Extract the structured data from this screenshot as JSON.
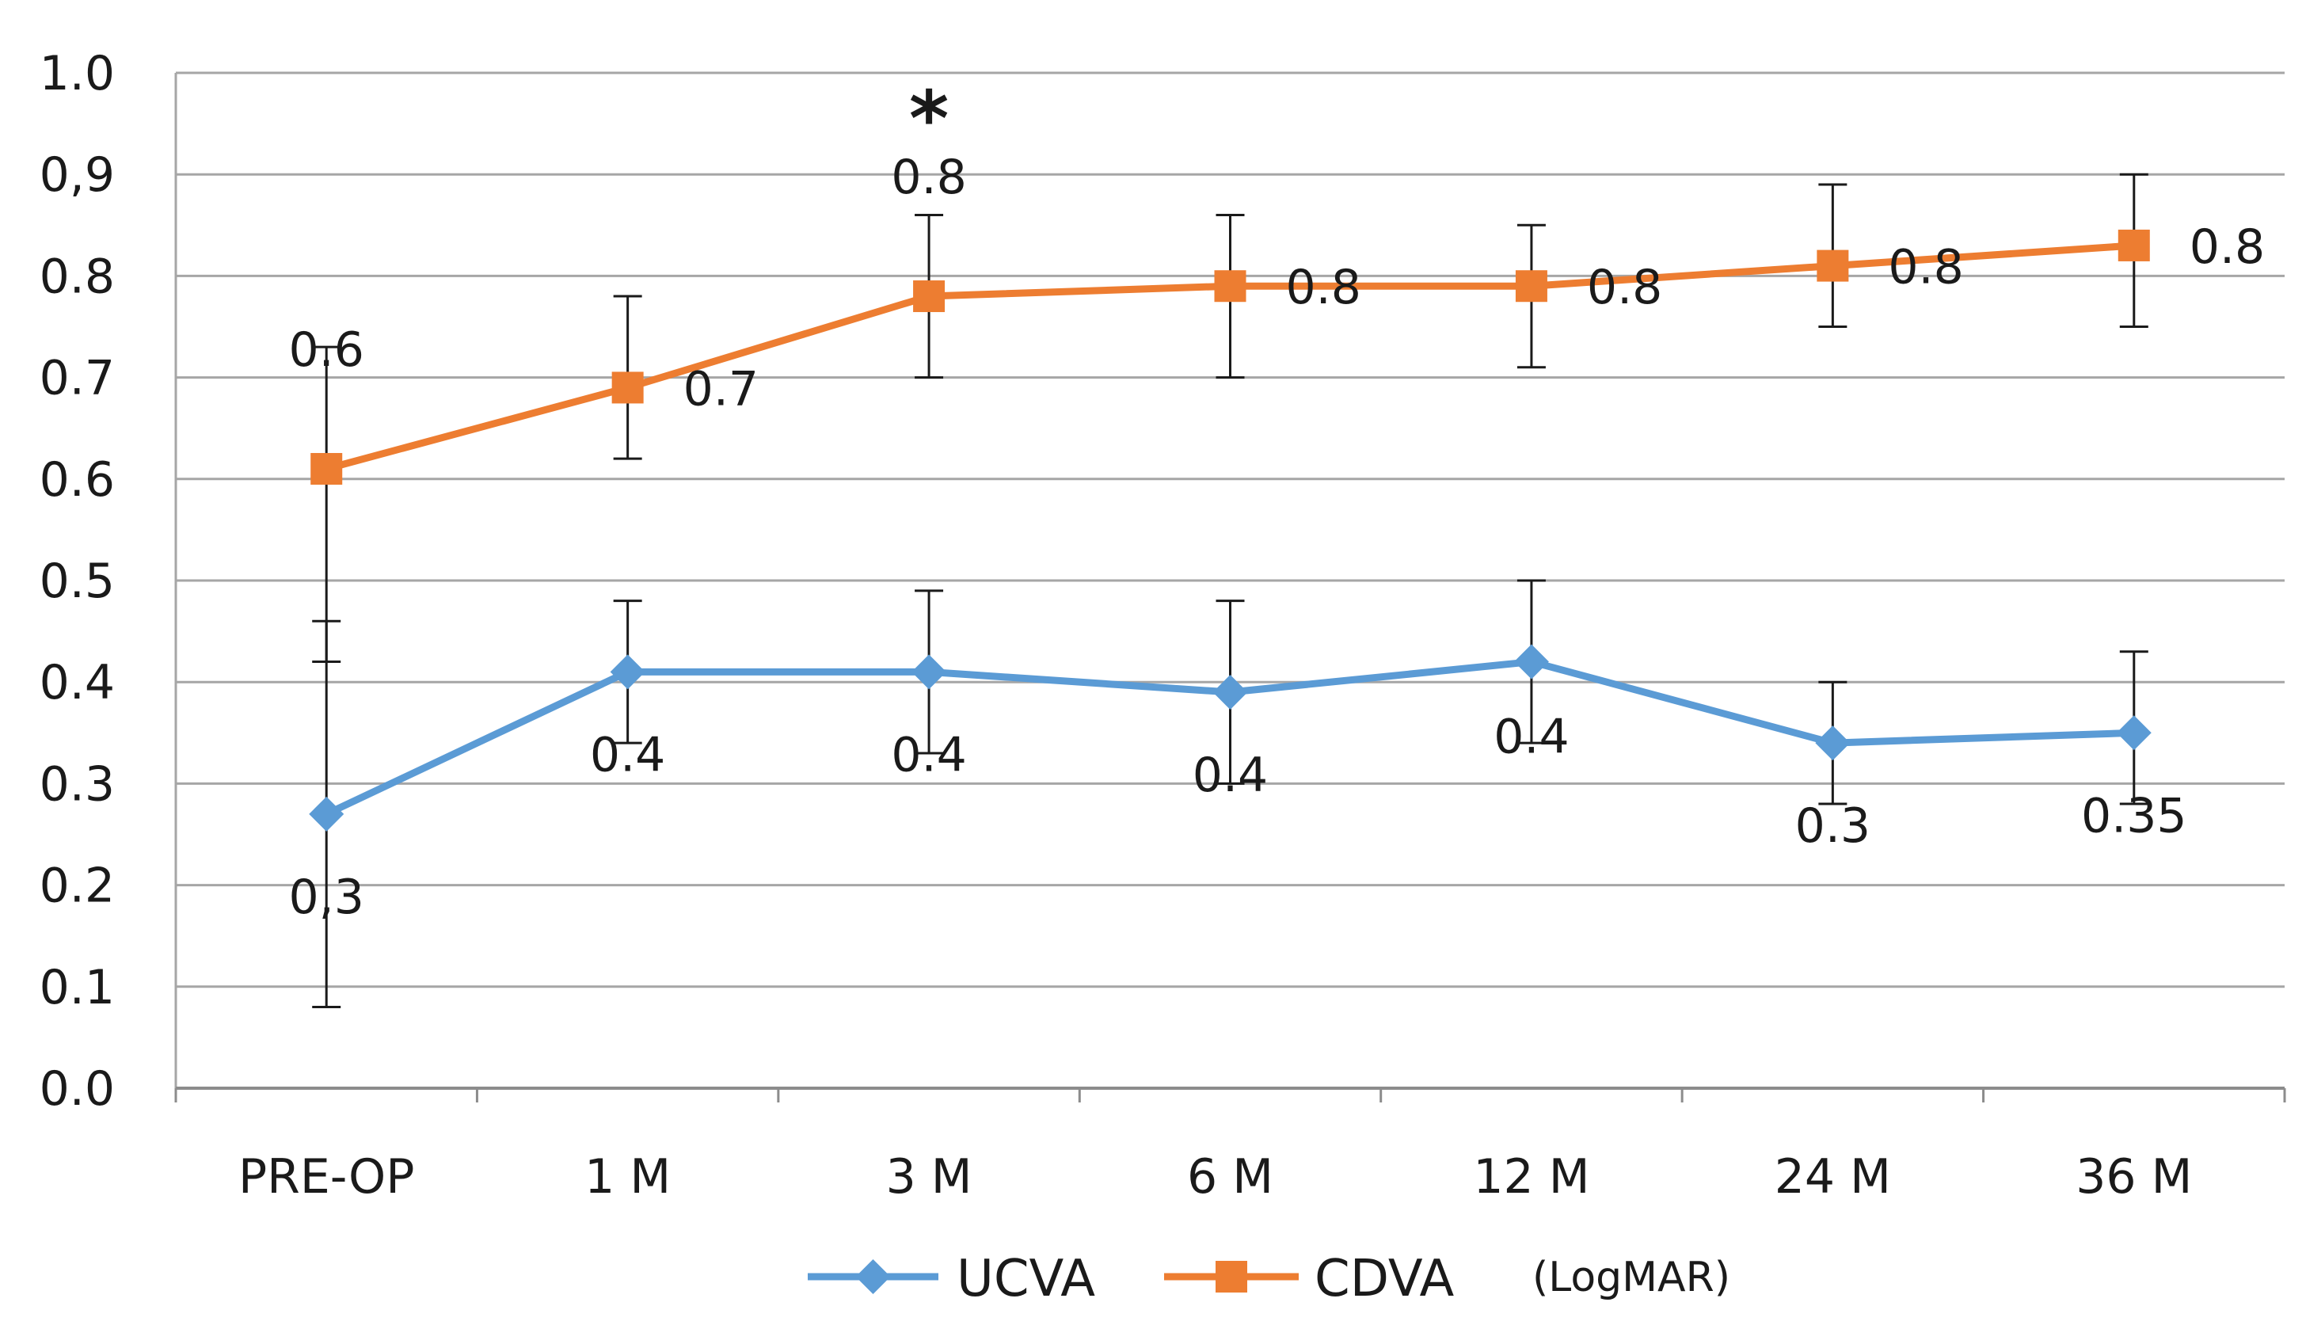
{
  "chart_data": {
    "type": "line",
    "title": "",
    "xlabel": "",
    "ylabel": "",
    "ylim": [
      0,
      1.0
    ],
    "y_ticks": [
      "0.0",
      "0.1",
      "0.2",
      "0.3",
      "0.4",
      "0.5",
      "0.6",
      "0.7",
      "0.8",
      "0,9",
      "1.0"
    ],
    "categories": [
      "PRE-OP",
      "1 M",
      "3 M",
      "6 M",
      "12 M",
      "24 M",
      "36 M"
    ],
    "grid": true,
    "legend_position": "bottom",
    "series": [
      {
        "name": "UCVA",
        "color": "#5B9BD5",
        "marker": "diamond",
        "values": [
          0.27,
          0.41,
          0.41,
          0.39,
          0.42,
          0.34,
          0.35
        ],
        "error_low": [
          0.08,
          0.34,
          0.33,
          0.3,
          0.34,
          0.28,
          0.28
        ],
        "error_high": [
          0.46,
          0.48,
          0.49,
          0.48,
          0.5,
          0.4,
          0.43
        ],
        "labels": [
          "0,3",
          "0.4",
          "0.4",
          "0.4",
          "0.4",
          "0.3",
          "0.35"
        ],
        "label_placement": [
          "below",
          "below",
          "below",
          "below",
          "above",
          "below",
          "below"
        ]
      },
      {
        "name": "CDVA",
        "color": "#ED7D31",
        "marker": "square",
        "values": [
          0.61,
          0.69,
          0.78,
          0.79,
          0.79,
          0.81,
          0.83
        ],
        "error_low": [
          0.42,
          0.62,
          0.7,
          0.7,
          0.71,
          0.75,
          0.75
        ],
        "error_high": [
          0.73,
          0.78,
          0.86,
          0.86,
          0.85,
          0.89,
          0.9
        ],
        "labels": [
          "0.6",
          "0.7",
          "0.8",
          "0.8",
          "0.8",
          "0.8",
          "0.8"
        ],
        "label_placement": [
          "above",
          "right",
          "above",
          "right",
          "right",
          "right",
          "right"
        ]
      }
    ],
    "annotations": [
      {
        "text": "*",
        "category": "3 M",
        "y": 0.96
      }
    ],
    "legend_note": "(LogMAR)"
  }
}
